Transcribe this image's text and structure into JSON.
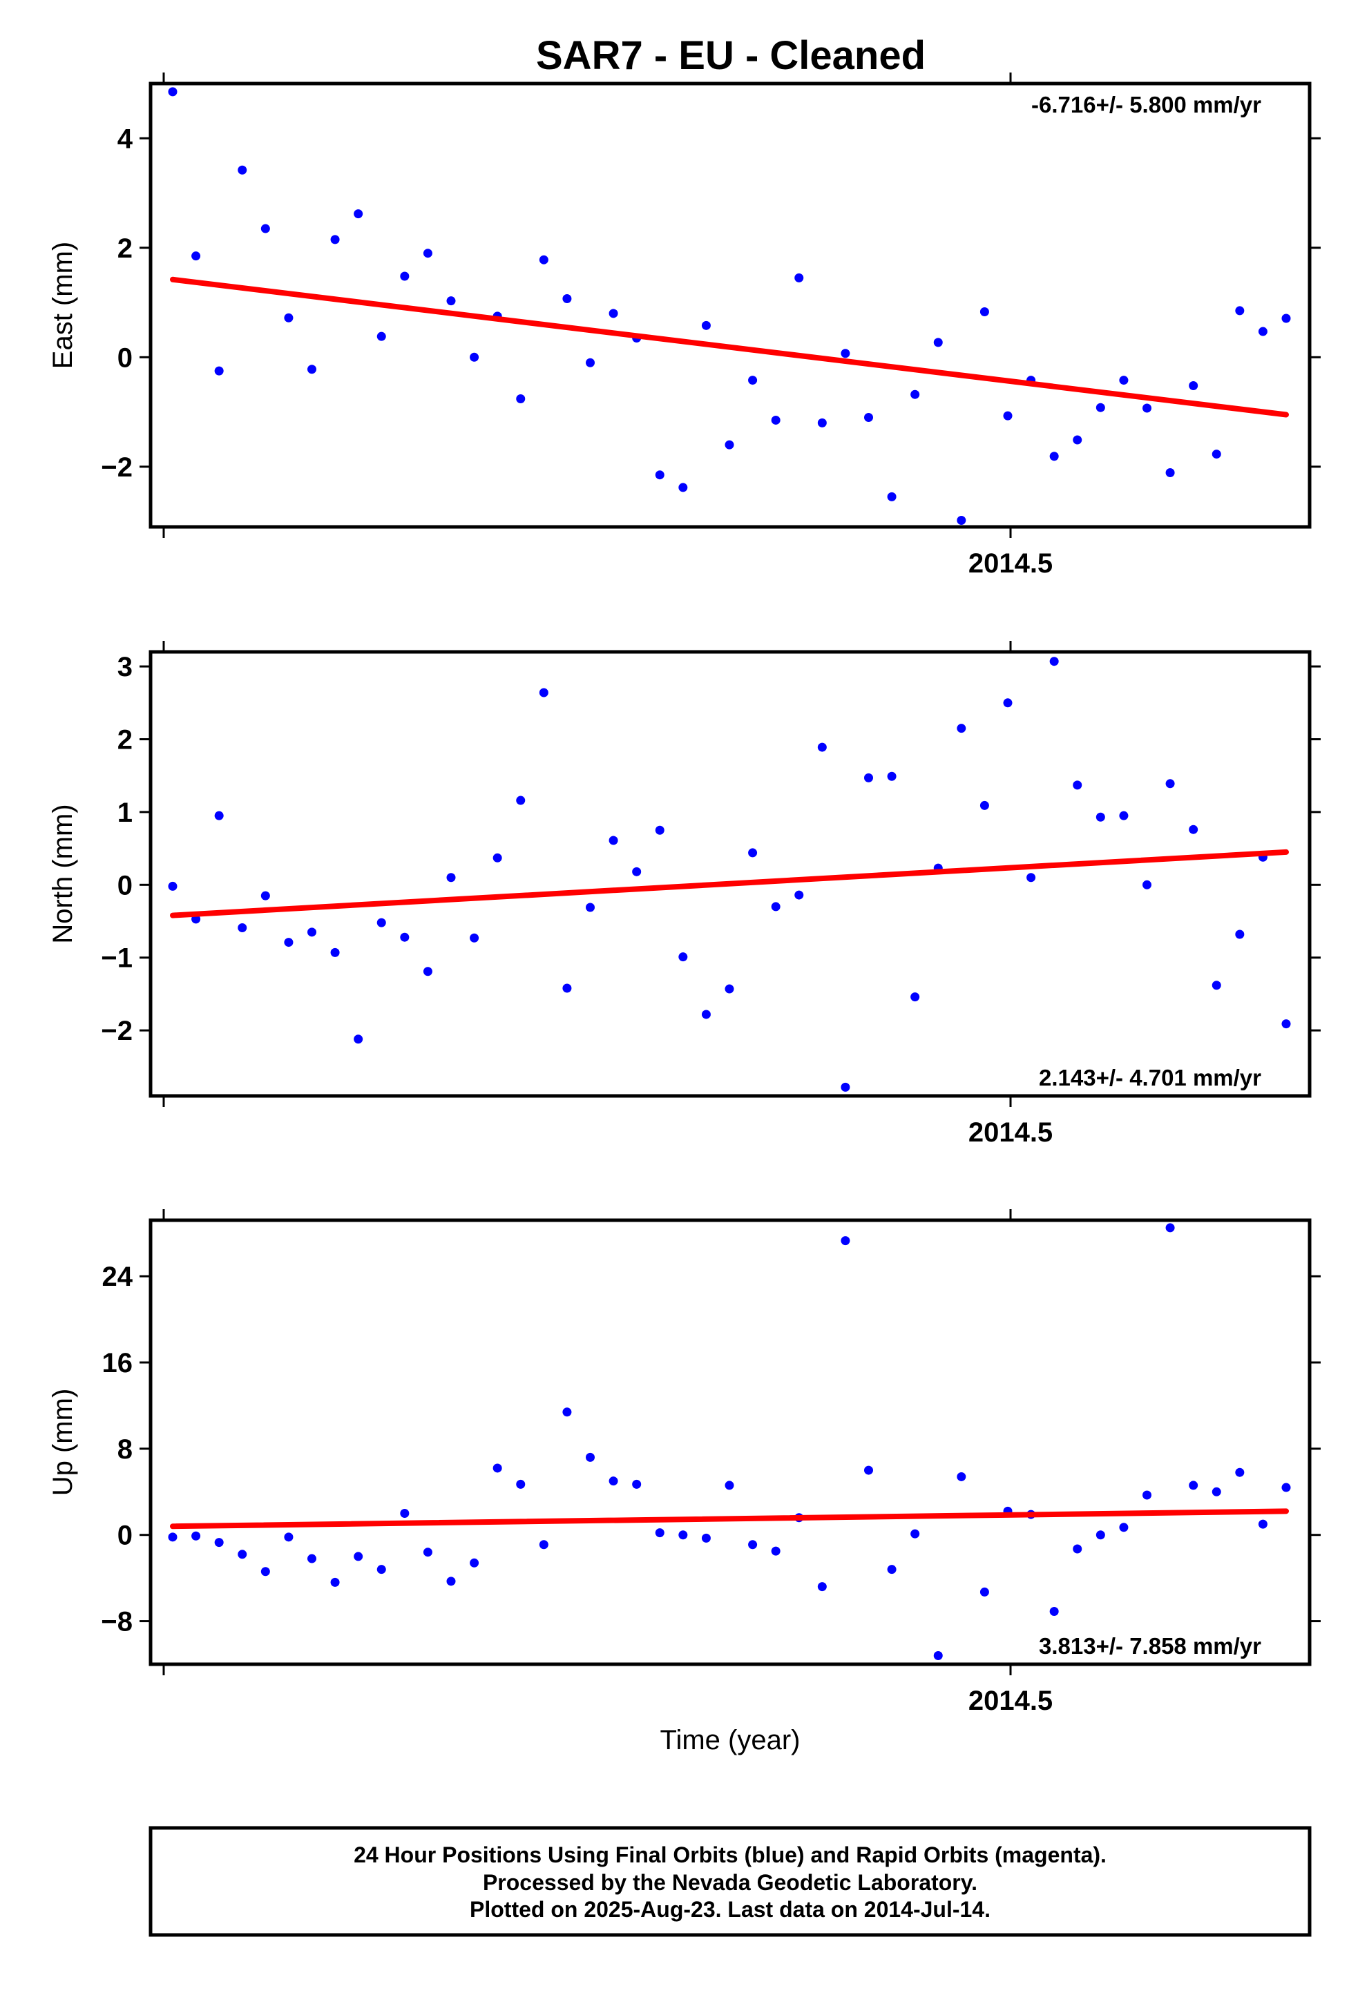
{
  "title": "SAR7  - EU - Cleaned",
  "footer": {
    "line1": "24 Hour Positions Using Final Orbits (blue) and Rapid Orbits (magenta).",
    "line2": "Processed by the Nevada Geodetic Laboratory.",
    "line3": "Plotted on 2025-Aug-23. Last data on 2014-Jul-14."
  },
  "colors": {
    "data_points": "#0000ff",
    "fit_line": "#ff0000",
    "frame": "#000000"
  },
  "chart_data": [
    {
      "type": "scatter",
      "ylabel": "East (mm)",
      "xlabel": "",
      "xtick_label": "2014.5",
      "yticks": [
        -2,
        0,
        2,
        4
      ],
      "ytick_labels": [
        "−2",
        "0",
        "2",
        "4"
      ],
      "ylim": [
        -3.1,
        5.0
      ],
      "rate_text": "-6.716+/- 5.800 mm/yr",
      "rate_position": "top-right",
      "series": [
        {
          "values": [
            4.85,
            1.85,
            -0.25,
            3.42,
            2.35,
            0.72,
            -0.22,
            2.15,
            2.62,
            0.38,
            1.48,
            1.9,
            1.03,
            0.0,
            0.75,
            -0.76,
            1.78,
            1.07,
            -0.1,
            0.8,
            0.35,
            -2.15,
            -2.38,
            0.58,
            -1.6,
            -0.42,
            -1.15,
            1.45,
            -1.2,
            0.07,
            -1.1,
            -2.55,
            -0.68,
            0.27,
            -2.98,
            0.83,
            -1.07,
            -0.42,
            -1.81,
            -1.51,
            -0.92,
            -0.42,
            -0.93,
            -2.11,
            -0.52,
            -1.77,
            0.85,
            0.47,
            0.71
          ]
        }
      ],
      "fit": {
        "start": 1.42,
        "end": -1.05
      }
    },
    {
      "type": "scatter",
      "ylabel": "North (mm)",
      "xlabel": "",
      "xtick_label": "2014.5",
      "yticks": [
        -2,
        -1,
        0,
        1,
        2,
        3
      ],
      "ytick_labels": [
        "−2",
        "−1",
        "0",
        "1",
        "2",
        "3"
      ],
      "ylim": [
        -2.9,
        3.2
      ],
      "rate_text": "2.143+/- 4.701 mm/yr",
      "rate_position": "bottom-right",
      "series": [
        {
          "values": [
            -0.02,
            -0.47,
            0.95,
            -0.59,
            -0.15,
            -0.79,
            -0.65,
            -0.93,
            -2.12,
            -0.52,
            -0.72,
            -1.19,
            0.1,
            -0.73,
            0.37,
            1.16,
            2.64,
            -1.42,
            -0.31,
            0.61,
            0.18,
            0.75,
            -0.99,
            -1.78,
            -1.43,
            0.44,
            -0.3,
            -0.14,
            1.89,
            -2.78,
            1.47,
            1.49,
            -1.54,
            0.23,
            2.15,
            1.09,
            2.5,
            0.1,
            3.07,
            1.37,
            0.93,
            0.95,
            0.0,
            1.39,
            0.76,
            -1.38,
            -0.68,
            0.38,
            -1.91
          ]
        }
      ],
      "fit": {
        "start": -0.42,
        "end": 0.45
      }
    },
    {
      "type": "scatter",
      "ylabel": "Up (mm)",
      "xlabel": "Time (year)",
      "xtick_label": "2014.5",
      "yticks": [
        -8,
        0,
        8,
        16,
        24
      ],
      "ytick_labels": [
        "−8",
        "0",
        "8",
        "16",
        "24"
      ],
      "ylim": [
        -12.0,
        29.2
      ],
      "rate_text": "3.813+/- 7.858 mm/yr",
      "rate_position": "bottom-right",
      "series": [
        {
          "values": [
            -0.2,
            -0.1,
            -0.7,
            -1.8,
            -3.4,
            -0.2,
            -2.2,
            -4.4,
            -2.0,
            -3.2,
            2.0,
            -1.6,
            -4.3,
            -2.6,
            6.2,
            4.7,
            -0.9,
            11.4,
            7.2,
            5.0,
            4.7,
            0.2,
            0.0,
            -0.3,
            4.6,
            -0.9,
            -1.5,
            1.6,
            -4.8,
            27.3,
            6.0,
            -3.2,
            0.1,
            -11.2,
            5.4,
            -5.3,
            2.2,
            1.9,
            -7.1,
            -1.3,
            0.0,
            0.7,
            3.7,
            28.5,
            4.6,
            4.0,
            5.8,
            1.0,
            4.4
          ]
        }
      ],
      "fit": {
        "start": 0.8,
        "end": 2.2
      }
    }
  ]
}
